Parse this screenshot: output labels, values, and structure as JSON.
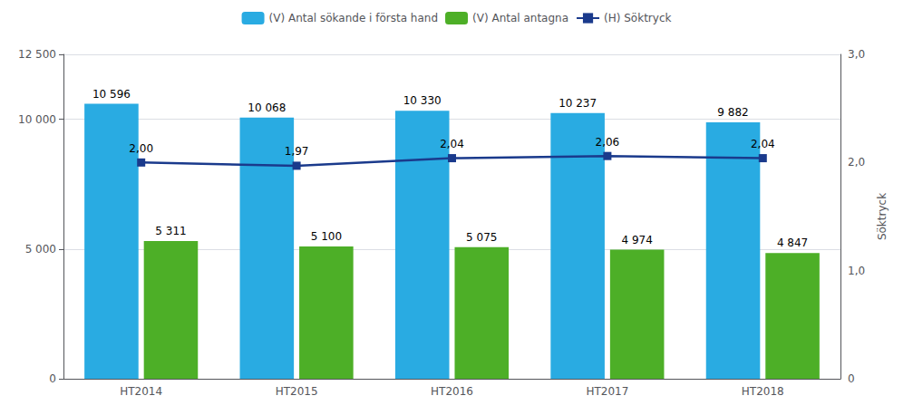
{
  "chart_data": {
    "type": "bar",
    "categories": [
      "HT2014",
      "HT2015",
      "HT2016",
      "HT2017",
      "HT2018"
    ],
    "series": [
      {
        "name": "(V) Antal sökande i första hand",
        "type": "bar",
        "color": "#29ABE2",
        "values": [
          10596,
          10068,
          10330,
          10237,
          9882
        ],
        "value_labels": [
          "10 596",
          "10 068",
          "10 330",
          "10 237",
          "9 882"
        ]
      },
      {
        "name": "(V) Antal antagna",
        "type": "bar",
        "color": "#4DAF27",
        "values": [
          5311,
          5100,
          5075,
          4974,
          4847
        ],
        "value_labels": [
          "5 311",
          "5 100",
          "5 075",
          "4 974",
          "4 847"
        ]
      },
      {
        "name": "(H) Söktryck",
        "type": "line",
        "axis": "y2",
        "color": "#1A3A8C",
        "marker": "square",
        "values": [
          2.0,
          1.97,
          2.04,
          2.06,
          2.04
        ],
        "value_labels": [
          "2,00",
          "1,97",
          "2,04",
          "2,06",
          "2,04"
        ]
      }
    ],
    "ylim": [
      0,
      12500
    ],
    "yticks": [
      0,
      {
        "value": 5000,
        "label": "5 000"
      },
      {
        "value": 10000,
        "label": "10 000"
      },
      {
        "value": 12500,
        "label": "12 500"
      }
    ],
    "y2lim": [
      0,
      3.0
    ],
    "y2ticks": [
      0,
      {
        "value": 1.0,
        "label": "1,0"
      },
      {
        "value": 2.0,
        "label": "2,0"
      },
      {
        "value": 3.0,
        "label": "3,0"
      }
    ],
    "y2label": "Söktryck",
    "grid": true,
    "legend": "top",
    "data_labels": true
  }
}
